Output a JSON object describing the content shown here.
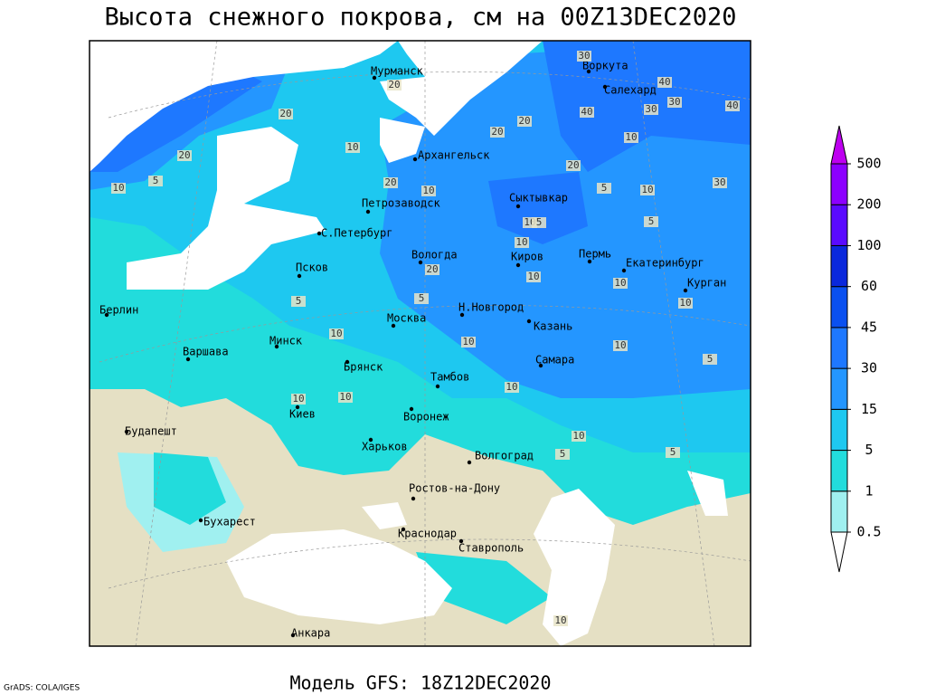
{
  "header": {
    "title": "Высота снежного покрова, см на 00Z13DEC2020"
  },
  "footer": {
    "model": "Модель GFS: 18Z12DEC2020",
    "credit": "GrADS: COLA/IGES"
  },
  "legend": {
    "levels": [
      0.5,
      1,
      5,
      15,
      30,
      45,
      60,
      100,
      200,
      500
    ],
    "colors": [
      "#ffffff",
      "#a0f0f0",
      "#22dcdc",
      "#1ec8f0",
      "#2496ff",
      "#1e78ff",
      "#0a50f0",
      "#0a28dc",
      "#5a0aff",
      "#8c00ff",
      "#be00f0"
    ]
  },
  "cities": [
    "Мурманск",
    "Воркута",
    "Салехард",
    "Архангельск",
    "Сыктывкар",
    "Петрозаводск",
    "С.Петербург",
    "Вологда",
    "Киров",
    "Пермь",
    "Екатеринбург",
    "Курган",
    "Псков",
    "Н.Новгород",
    "Москва",
    "Казань",
    "Берлин",
    "Минск",
    "Варшава",
    "Самара",
    "Брянск",
    "Тамбов",
    "Киев",
    "Воронеж",
    "Будапешт",
    "Харьков",
    "Волгоград",
    "Ростов-на-Дону",
    "Бухарест",
    "Краснодар",
    "Ставрополь",
    "Анкара"
  ],
  "contour_labels": [
    30,
    40,
    20,
    30,
    40,
    30,
    40,
    20,
    20,
    20,
    20,
    10,
    10,
    10,
    10,
    5,
    10,
    20,
    30,
    5,
    10,
    20,
    10,
    20,
    10,
    10,
    10,
    5,
    5,
    10,
    10,
    10,
    5,
    10,
    10,
    10,
    5,
    5,
    5,
    10,
    5,
    10
  ]
}
